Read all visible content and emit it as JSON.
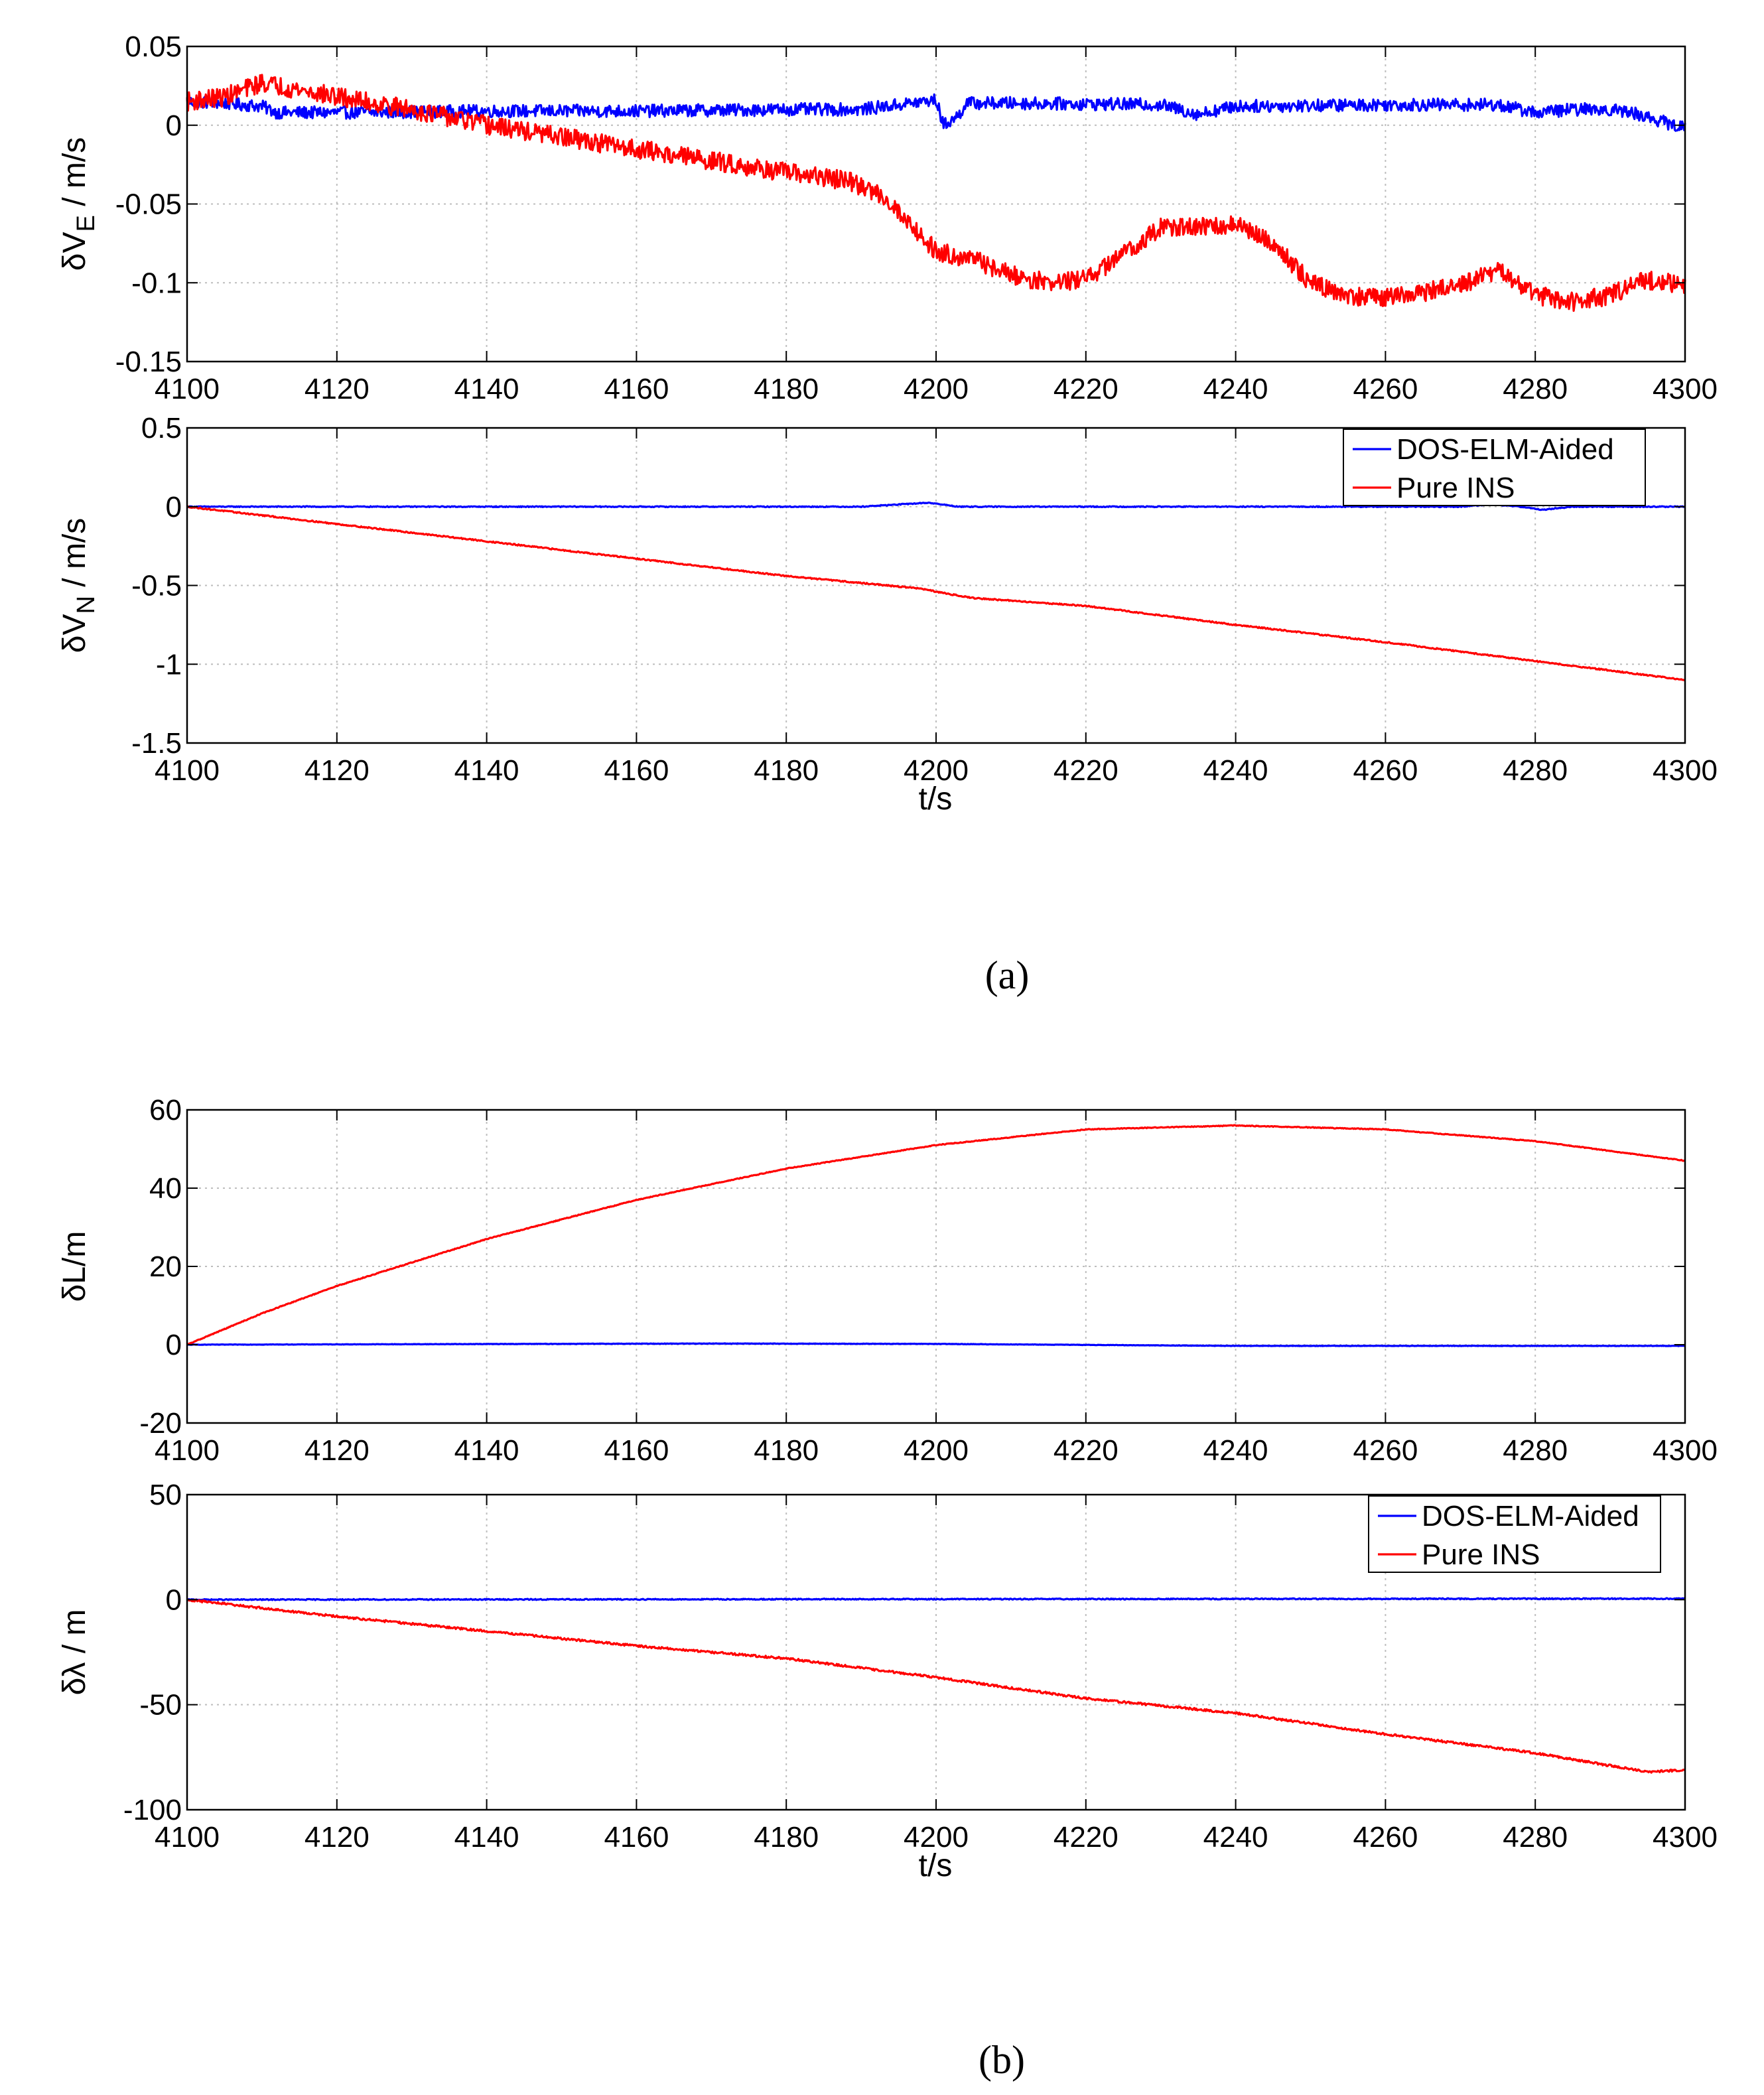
{
  "figure": {
    "panel_a_label": "(a)",
    "panel_b_label": "(b)",
    "colors": {
      "series_aided": "#0000ff",
      "series_ins": "#ff0000",
      "grid": "#bdbdbd",
      "axis": "#000000"
    }
  },
  "chart_data": [
    {
      "id": "ve",
      "type": "line",
      "panel": "a",
      "ylabel": "δV_E / m/s",
      "ylabel_main": "δV",
      "ylabel_sub": "E",
      "ylabel_rest": " / m/s",
      "xlabel": "",
      "xlim": [
        4100,
        4300
      ],
      "ylim": [
        -0.15,
        0.05
      ],
      "xticks": [
        4100,
        4120,
        4140,
        4160,
        4180,
        4200,
        4220,
        4240,
        4260,
        4280,
        4300
      ],
      "yticks": [
        -0.15,
        -0.1,
        -0.05,
        0,
        0.05
      ],
      "ytick_labels": [
        "-0.15",
        "-0.1",
        "-0.05",
        "0",
        "0.05"
      ],
      "grid": true,
      "legend": null,
      "series": [
        {
          "name": "DOS-ELM-Aided",
          "color": "#0000ff",
          "noise": 0.004,
          "x": [
            4100,
            4105,
            4110,
            4112,
            4120,
            4140,
            4160,
            4180,
            4190,
            4195,
            4200,
            4201,
            4203,
            4204,
            4210,
            4230,
            4235,
            4240,
            4260,
            4275,
            4280,
            4285,
            4290,
            4293,
            4300
          ],
          "y": [
            0.015,
            0.014,
            0.012,
            0.008,
            0.008,
            0.009,
            0.009,
            0.01,
            0.01,
            0.013,
            0.016,
            0.0,
            0.006,
            0.014,
            0.014,
            0.013,
            0.007,
            0.012,
            0.013,
            0.013,
            0.008,
            0.01,
            0.01,
            0.008,
            -0.002
          ]
        },
        {
          "name": "Pure INS",
          "color": "#ff0000",
          "noise": 0.006,
          "x": [
            4100,
            4105,
            4110,
            4120,
            4130,
            4140,
            4160,
            4180,
            4188,
            4193,
            4197,
            4200,
            4205,
            4210,
            4215,
            4220,
            4230,
            4235,
            4240,
            4245,
            4250,
            4255,
            4260,
            4270,
            4275,
            4280,
            4285,
            4290,
            4295,
            4300
          ],
          "y": [
            0.015,
            0.018,
            0.027,
            0.018,
            0.01,
            0.0,
            -0.015,
            -0.03,
            -0.035,
            -0.045,
            -0.065,
            -0.08,
            -0.085,
            -0.095,
            -0.1,
            -0.098,
            -0.065,
            -0.065,
            -0.063,
            -0.075,
            -0.1,
            -0.108,
            -0.11,
            -0.102,
            -0.092,
            -0.108,
            -0.112,
            -0.108,
            -0.098,
            -0.102
          ]
        }
      ]
    },
    {
      "id": "vn",
      "type": "line",
      "panel": "a",
      "ylabel": "δV_N / m/s",
      "ylabel_main": "δV",
      "ylabel_sub": "N",
      "ylabel_rest": " / m/s",
      "xlabel": "t/s",
      "xlim": [
        4100,
        4300
      ],
      "ylim": [
        -1.5,
        0.5
      ],
      "xticks": [
        4100,
        4120,
        4140,
        4160,
        4180,
        4200,
        4220,
        4240,
        4260,
        4280,
        4300
      ],
      "yticks": [
        -1.5,
        -1,
        -0.5,
        0,
        0.5
      ],
      "ytick_labels": [
        "-1.5",
        "-1",
        "-0.5",
        "0",
        "0.5"
      ],
      "grid": true,
      "legend": "top-right",
      "series": [
        {
          "name": "DOS-ELM-Aided",
          "color": "#0000ff",
          "noise": 0.003,
          "x": [
            4100,
            4190,
            4199,
            4203,
            4270,
            4274,
            4278,
            4281,
            4285,
            4300
          ],
          "y": [
            0.0,
            0.0,
            0.025,
            0.0,
            0.0,
            0.015,
            0.0,
            -0.02,
            0.0,
            0.0
          ]
        },
        {
          "name": "Pure INS",
          "color": "#ff0000",
          "noise": 0.004,
          "x": [
            4100,
            4120,
            4140,
            4160,
            4180,
            4198,
            4200,
            4205,
            4220,
            4240,
            4260,
            4280,
            4300
          ],
          "y": [
            0.0,
            -0.11,
            -0.22,
            -0.33,
            -0.44,
            -0.52,
            -0.54,
            -0.58,
            -0.63,
            -0.75,
            -0.86,
            -0.98,
            -1.1
          ]
        }
      ]
    },
    {
      "id": "dl",
      "type": "line",
      "panel": "b",
      "ylabel": "δL/m",
      "ylabel_main": "δL/m",
      "ylabel_sub": "",
      "ylabel_rest": "",
      "xlabel": "",
      "xlim": [
        4100,
        4300
      ],
      "ylim": [
        -20,
        60
      ],
      "xticks": [
        4100,
        4120,
        4140,
        4160,
        4180,
        4200,
        4220,
        4240,
        4260,
        4280,
        4300
      ],
      "yticks": [
        -20,
        0,
        20,
        40,
        60
      ],
      "ytick_labels": [
        "-20",
        "0",
        "20",
        "40",
        "60"
      ],
      "grid": true,
      "legend": null,
      "series": [
        {
          "name": "DOS-ELM-Aided",
          "color": "#0000ff",
          "noise": 0.05,
          "x": [
            4100,
            4170,
            4200,
            4240,
            4300
          ],
          "y": [
            0.0,
            0.3,
            0.2,
            -0.3,
            -0.3
          ]
        },
        {
          "name": "Pure INS",
          "color": "#ff0000",
          "noise": 0.1,
          "x": [
            4100,
            4110,
            4120,
            4140,
            4160,
            4180,
            4200,
            4220,
            4240,
            4260,
            4280,
            4300
          ],
          "y": [
            0.0,
            8.0,
            15.0,
            27.0,
            37.0,
            45.0,
            51.0,
            55.0,
            56.0,
            55.0,
            52.0,
            47.0
          ]
        }
      ]
    },
    {
      "id": "dlambda",
      "type": "line",
      "panel": "b",
      "ylabel": "δλ / m",
      "ylabel_main": "δλ / m",
      "ylabel_sub": "",
      "ylabel_rest": "",
      "xlabel": "t/s",
      "xlim": [
        4100,
        4300
      ],
      "ylim": [
        -100,
        50
      ],
      "xticks": [
        4100,
        4120,
        4140,
        4160,
        4180,
        4200,
        4220,
        4240,
        4260,
        4280,
        4300
      ],
      "yticks": [
        -100,
        -50,
        0,
        50
      ],
      "ytick_labels": [
        "-100",
        "-50",
        "0",
        "50"
      ],
      "grid": true,
      "legend": "top-right",
      "series": [
        {
          "name": "DOS-ELM-Aided",
          "color": "#0000ff",
          "noise": 0.25,
          "x": [
            4100,
            4300
          ],
          "y": [
            0.0,
            0.5
          ]
        },
        {
          "name": "Pure INS",
          "color": "#ff0000",
          "noise": 0.5,
          "x": [
            4100,
            4110,
            4120,
            4140,
            4160,
            4180,
            4200,
            4220,
            4240,
            4260,
            4280,
            4295,
            4300
          ],
          "y": [
            0.0,
            -4.0,
            -8.0,
            -15.0,
            -22.0,
            -28.0,
            -37.0,
            -47.0,
            -54.0,
            -64.0,
            -73.0,
            -82.0,
            -81.0
          ]
        }
      ]
    }
  ]
}
